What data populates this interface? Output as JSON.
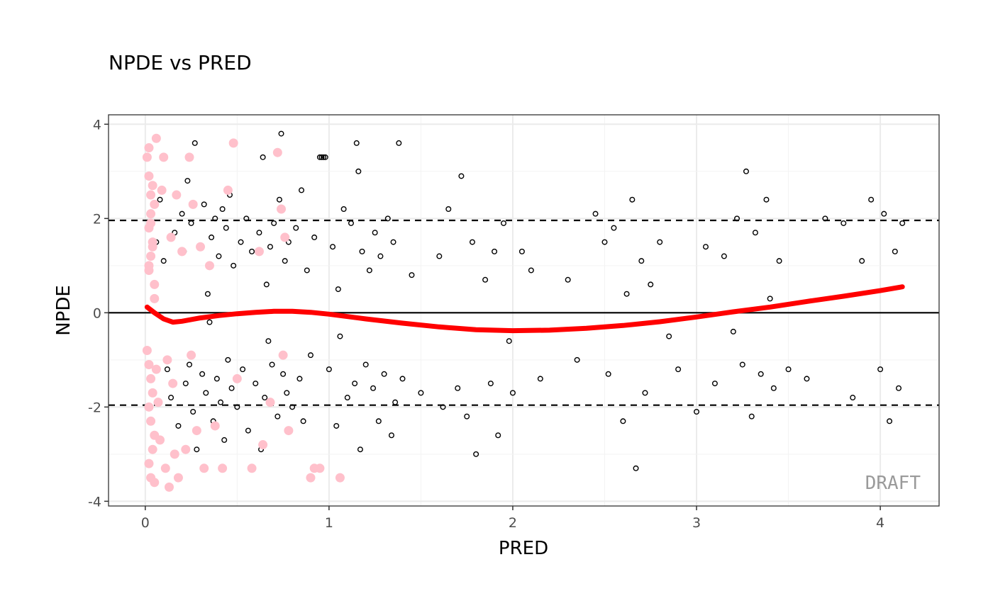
{
  "chart_data": {
    "type": "scatter",
    "title": "NPDE vs PRED",
    "xlabel": "PRED",
    "ylabel": "NPDE",
    "xlim": [
      -0.2,
      4.32
    ],
    "ylim": [
      -4.1,
      4.2
    ],
    "x_ticks": [
      0,
      1,
      2,
      3,
      4
    ],
    "x_tick_labels": [
      "0",
      "1",
      "2",
      "3",
      "4"
    ],
    "y_ticks": [
      -4,
      -2,
      0,
      2,
      4
    ],
    "y_tick_labels": [
      "-4",
      "-2",
      "0",
      "2",
      "4"
    ],
    "grid": true,
    "reference_lines": {
      "solid": [
        0
      ],
      "dashed": [
        -1.96,
        1.96
      ]
    },
    "watermark": "DRAFT",
    "colors": {
      "points": "#000000",
      "highlight": "#ffc0cb",
      "smooth": "#ff0000",
      "grid": "#ebebeb",
      "panel_border": "#333333"
    },
    "series": [
      {
        "kind": "points",
        "values": [
          [
            0.06,
            1.5
          ],
          [
            0.08,
            2.4
          ],
          [
            0.1,
            1.1
          ],
          [
            0.12,
            -1.2
          ],
          [
            0.14,
            -1.8
          ],
          [
            0.16,
            1.7
          ],
          [
            0.18,
            -2.4
          ],
          [
            0.2,
            2.1
          ],
          [
            0.21,
            1.3
          ],
          [
            0.22,
            -1.5
          ],
          [
            0.23,
            2.8
          ],
          [
            0.24,
            -1.1
          ],
          [
            0.25,
            1.9
          ],
          [
            0.26,
            -2.1
          ],
          [
            0.27,
            3.6
          ],
          [
            0.28,
            -2.9
          ],
          [
            0.3,
            1.4
          ],
          [
            0.31,
            -1.3
          ],
          [
            0.32,
            2.3
          ],
          [
            0.33,
            -1.7
          ],
          [
            0.34,
            0.4
          ],
          [
            0.35,
            -0.2
          ],
          [
            0.36,
            1.6
          ],
          [
            0.37,
            -2.3
          ],
          [
            0.38,
            2.0
          ],
          [
            0.39,
            -1.4
          ],
          [
            0.4,
            1.2
          ],
          [
            0.41,
            -1.9
          ],
          [
            0.42,
            2.2
          ],
          [
            0.43,
            -2.7
          ],
          [
            0.44,
            1.8
          ],
          [
            0.45,
            -1.0
          ],
          [
            0.46,
            2.5
          ],
          [
            0.47,
            -1.6
          ],
          [
            0.48,
            1.0
          ],
          [
            0.5,
            -2.0
          ],
          [
            0.52,
            1.5
          ],
          [
            0.53,
            -1.2
          ],
          [
            0.55,
            2.0
          ],
          [
            0.56,
            -2.5
          ],
          [
            0.58,
            1.3
          ],
          [
            0.6,
            -1.5
          ],
          [
            0.62,
            1.7
          ],
          [
            0.63,
            -2.9
          ],
          [
            0.64,
            3.3
          ],
          [
            0.65,
            -1.8
          ],
          [
            0.66,
            0.6
          ],
          [
            0.67,
            -0.6
          ],
          [
            0.68,
            1.4
          ],
          [
            0.69,
            -1.1
          ],
          [
            0.7,
            1.9
          ],
          [
            0.72,
            -2.2
          ],
          [
            0.73,
            2.4
          ],
          [
            0.74,
            3.8
          ],
          [
            0.75,
            -1.3
          ],
          [
            0.76,
            1.1
          ],
          [
            0.77,
            -1.7
          ],
          [
            0.78,
            1.5
          ],
          [
            0.8,
            -2.0
          ],
          [
            0.82,
            1.8
          ],
          [
            0.84,
            -1.4
          ],
          [
            0.85,
            2.6
          ],
          [
            0.86,
            -2.3
          ],
          [
            0.88,
            0.9
          ],
          [
            0.9,
            -0.9
          ],
          [
            0.92,
            1.6
          ],
          [
            0.95,
            3.3
          ],
          [
            0.96,
            3.3
          ],
          [
            0.97,
            3.3
          ],
          [
            0.98,
            3.3
          ],
          [
            1.0,
            -1.2
          ],
          [
            1.02,
            1.4
          ],
          [
            1.04,
            -2.4
          ],
          [
            1.05,
            0.5
          ],
          [
            1.06,
            -0.5
          ],
          [
            1.08,
            2.2
          ],
          [
            1.1,
            -1.8
          ],
          [
            1.12,
            1.9
          ],
          [
            1.14,
            -1.5
          ],
          [
            1.15,
            3.6
          ],
          [
            1.16,
            3.0
          ],
          [
            1.17,
            -2.9
          ],
          [
            1.18,
            1.3
          ],
          [
            1.2,
            -1.1
          ],
          [
            1.22,
            0.9
          ],
          [
            1.24,
            -1.6
          ],
          [
            1.25,
            1.7
          ],
          [
            1.27,
            -2.3
          ],
          [
            1.28,
            1.2
          ],
          [
            1.3,
            -1.3
          ],
          [
            1.32,
            2.0
          ],
          [
            1.34,
            -2.6
          ],
          [
            1.35,
            1.5
          ],
          [
            1.36,
            -1.9
          ],
          [
            1.38,
            3.6
          ],
          [
            1.4,
            -1.4
          ],
          [
            1.45,
            0.8
          ],
          [
            1.5,
            -1.7
          ],
          [
            1.6,
            1.2
          ],
          [
            1.62,
            -2.0
          ],
          [
            1.65,
            2.2
          ],
          [
            1.7,
            -1.6
          ],
          [
            1.72,
            2.9
          ],
          [
            1.75,
            -2.2
          ],
          [
            1.78,
            1.5
          ],
          [
            1.8,
            -3.0
          ],
          [
            1.85,
            0.7
          ],
          [
            1.88,
            -1.5
          ],
          [
            1.9,
            1.3
          ],
          [
            1.92,
            -2.6
          ],
          [
            1.95,
            1.9
          ],
          [
            1.98,
            -0.6
          ],
          [
            2.0,
            -1.7
          ],
          [
            2.05,
            1.3
          ],
          [
            2.1,
            0.9
          ],
          [
            2.15,
            -1.4
          ],
          [
            2.3,
            0.7
          ],
          [
            2.35,
            -1.0
          ],
          [
            2.45,
            2.1
          ],
          [
            2.5,
            1.5
          ],
          [
            2.52,
            -1.3
          ],
          [
            2.55,
            1.8
          ],
          [
            2.6,
            -2.3
          ],
          [
            2.62,
            0.4
          ],
          [
            2.65,
            2.4
          ],
          [
            2.67,
            -3.3
          ],
          [
            2.7,
            1.1
          ],
          [
            2.72,
            -1.7
          ],
          [
            2.75,
            0.6
          ],
          [
            2.8,
            1.5
          ],
          [
            2.85,
            -0.5
          ],
          [
            2.9,
            -1.2
          ],
          [
            3.0,
            -2.1
          ],
          [
            3.05,
            1.4
          ],
          [
            3.1,
            -1.5
          ],
          [
            3.15,
            1.2
          ],
          [
            3.2,
            -0.4
          ],
          [
            3.22,
            2.0
          ],
          [
            3.25,
            -1.1
          ],
          [
            3.27,
            3.0
          ],
          [
            3.3,
            -2.2
          ],
          [
            3.32,
            1.7
          ],
          [
            3.35,
            -1.3
          ],
          [
            3.38,
            2.4
          ],
          [
            3.4,
            0.3
          ],
          [
            3.42,
            -1.6
          ],
          [
            3.45,
            1.1
          ],
          [
            3.5,
            -1.2
          ],
          [
            3.6,
            -1.4
          ],
          [
            3.7,
            2.0
          ],
          [
            3.8,
            1.9
          ],
          [
            3.85,
            -1.8
          ],
          [
            3.9,
            1.1
          ],
          [
            3.95,
            2.4
          ],
          [
            4.0,
            -1.2
          ],
          [
            4.02,
            2.1
          ],
          [
            4.05,
            -2.3
          ],
          [
            4.08,
            1.3
          ],
          [
            4.1,
            -1.6
          ],
          [
            4.12,
            1.9
          ]
        ]
      },
      {
        "kind": "highlight",
        "values": [
          [
            0.01,
            3.3
          ],
          [
            0.02,
            3.5
          ],
          [
            0.02,
            2.9
          ],
          [
            0.03,
            2.5
          ],
          [
            0.03,
            2.1
          ],
          [
            0.02,
            1.8
          ],
          [
            0.04,
            1.5
          ],
          [
            0.03,
            1.2
          ],
          [
            0.02,
            0.9
          ],
          [
            0.05,
            0.6
          ],
          [
            0.06,
            3.7
          ],
          [
            0.04,
            2.7
          ],
          [
            0.05,
            2.3
          ],
          [
            0.03,
            1.9
          ],
          [
            0.04,
            1.4
          ],
          [
            0.02,
            1.0
          ],
          [
            0.05,
            0.3
          ],
          [
            0.01,
            -0.8
          ],
          [
            0.02,
            -1.1
          ],
          [
            0.03,
            -1.4
          ],
          [
            0.04,
            -1.7
          ],
          [
            0.02,
            -2.0
          ],
          [
            0.03,
            -2.3
          ],
          [
            0.05,
            -2.6
          ],
          [
            0.04,
            -2.9
          ],
          [
            0.02,
            -3.2
          ],
          [
            0.03,
            -3.5
          ],
          [
            0.05,
            -3.6
          ],
          [
            0.06,
            -1.2
          ],
          [
            0.07,
            -1.9
          ],
          [
            0.08,
            -2.7
          ],
          [
            0.09,
            2.6
          ],
          [
            0.1,
            3.3
          ],
          [
            0.11,
            -3.3
          ],
          [
            0.12,
            -1.0
          ],
          [
            0.13,
            -3.7
          ],
          [
            0.14,
            1.6
          ],
          [
            0.15,
            -1.5
          ],
          [
            0.16,
            -3.0
          ],
          [
            0.17,
            2.5
          ],
          [
            0.18,
            -3.5
          ],
          [
            0.2,
            1.3
          ],
          [
            0.22,
            -2.9
          ],
          [
            0.24,
            3.3
          ],
          [
            0.25,
            -0.9
          ],
          [
            0.26,
            2.3
          ],
          [
            0.28,
            -2.5
          ],
          [
            0.3,
            1.4
          ],
          [
            0.32,
            -3.3
          ],
          [
            0.35,
            1.0
          ],
          [
            0.38,
            -2.4
          ],
          [
            0.42,
            -3.3
          ],
          [
            0.45,
            2.6
          ],
          [
            0.48,
            3.6
          ],
          [
            0.5,
            -1.4
          ],
          [
            0.58,
            -3.3
          ],
          [
            0.62,
            1.3
          ],
          [
            0.64,
            -2.8
          ],
          [
            0.68,
            -1.9
          ],
          [
            0.72,
            3.4
          ],
          [
            0.74,
            2.2
          ],
          [
            0.75,
            -0.9
          ],
          [
            0.76,
            1.6
          ],
          [
            0.78,
            -2.5
          ],
          [
            0.9,
            -3.5
          ],
          [
            0.92,
            -3.3
          ],
          [
            0.95,
            -3.3
          ],
          [
            1.06,
            -3.5
          ]
        ]
      },
      {
        "kind": "smooth",
        "values": [
          [
            0.01,
            0.12
          ],
          [
            0.05,
            0.0
          ],
          [
            0.1,
            -0.13
          ],
          [
            0.15,
            -0.2
          ],
          [
            0.2,
            -0.18
          ],
          [
            0.3,
            -0.11
          ],
          [
            0.4,
            -0.06
          ],
          [
            0.5,
            -0.02
          ],
          [
            0.6,
            0.01
          ],
          [
            0.7,
            0.03
          ],
          [
            0.8,
            0.03
          ],
          [
            0.9,
            0.01
          ],
          [
            1.0,
            -0.03
          ],
          [
            1.2,
            -0.13
          ],
          [
            1.4,
            -0.22
          ],
          [
            1.6,
            -0.3
          ],
          [
            1.8,
            -0.36
          ],
          [
            2.0,
            -0.38
          ],
          [
            2.2,
            -0.37
          ],
          [
            2.4,
            -0.33
          ],
          [
            2.6,
            -0.27
          ],
          [
            2.8,
            -0.19
          ],
          [
            3.0,
            -0.09
          ],
          [
            3.2,
            0.02
          ],
          [
            3.4,
            0.12
          ],
          [
            3.6,
            0.24
          ],
          [
            3.8,
            0.35
          ],
          [
            4.0,
            0.47
          ],
          [
            4.12,
            0.55
          ]
        ]
      }
    ]
  }
}
